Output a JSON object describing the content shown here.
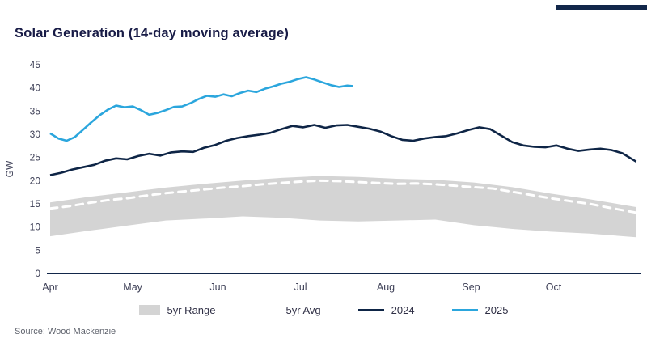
{
  "page": {
    "title": "Solar Generation (14-day moving average)",
    "source": "Source: Wood Mackenzie"
  },
  "legend": [
    {
      "label": "5yr Range",
      "type": "box",
      "color": "#d4d4d4"
    },
    {
      "label": "5yr Avg",
      "type": "dashed-line",
      "color": "#ffffff"
    },
    {
      "label": "2024",
      "type": "line",
      "color": "#0e2546"
    },
    {
      "label": "2025",
      "type": "line",
      "color": "#2ba6dd"
    }
  ],
  "chart_data": {
    "type": "line",
    "title": "Solar Generation (14-day moving average)",
    "xlabel": "",
    "ylabel": "GW",
    "ylim": [
      0,
      45
    ],
    "y_ticks": [
      0,
      5,
      10,
      15,
      20,
      25,
      30,
      35,
      40,
      45
    ],
    "grid": false,
    "legend_position": "bottom",
    "x_domain_days": [
      0,
      214
    ],
    "x_months": [
      {
        "label": "Apr",
        "day": 0
      },
      {
        "label": "May",
        "day": 30
      },
      {
        "label": "Jun",
        "day": 61
      },
      {
        "label": "Jul",
        "day": 91
      },
      {
        "label": "Aug",
        "day": 122
      },
      {
        "label": "Sep",
        "day": 153
      },
      {
        "label": "Oct",
        "day": 183
      }
    ],
    "colors": {
      "range": "#d4d4d4",
      "avg": "#ffffff",
      "y2024": "#0e2546",
      "y2025": "#2ba6dd",
      "axis": "#12274a"
    },
    "series": {
      "range": {
        "name": "5yr Range",
        "days": [
          0,
          14,
          28,
          42,
          56,
          70,
          84,
          98,
          112,
          126,
          140,
          154,
          168,
          182,
          196,
          213
        ],
        "upper": [
          15.3,
          16.5,
          17.5,
          18.5,
          19.3,
          20.0,
          20.6,
          21.0,
          20.8,
          20.4,
          20.2,
          19.6,
          18.6,
          17.2,
          16.0,
          14.3
        ],
        "lower": [
          8.0,
          9.2,
          10.3,
          11.4,
          11.8,
          12.3,
          12.0,
          11.4,
          11.2,
          11.4,
          11.6,
          10.4,
          9.6,
          9.0,
          8.6,
          7.8
        ]
      },
      "avg": {
        "name": "5yr Avg",
        "days": [
          0,
          7,
          14,
          21,
          28,
          35,
          42,
          49,
          56,
          63,
          70,
          77,
          84,
          91,
          98,
          105,
          112,
          119,
          126,
          133,
          140,
          147,
          154,
          161,
          168,
          175,
          182,
          189,
          196,
          203,
          213
        ],
        "values": [
          14.0,
          14.5,
          15.2,
          15.8,
          16.2,
          16.8,
          17.3,
          17.7,
          18.1,
          18.5,
          18.8,
          19.2,
          19.5,
          19.8,
          20.0,
          19.9,
          19.7,
          19.5,
          19.3,
          19.4,
          19.2,
          18.9,
          18.6,
          18.3,
          17.6,
          16.9,
          16.2,
          15.6,
          15.0,
          14.2,
          13.1
        ]
      },
      "y2024": {
        "name": "2024",
        "days": [
          0,
          4,
          8,
          12,
          16,
          20,
          24,
          28,
          32,
          36,
          40,
          44,
          48,
          52,
          56,
          60,
          64,
          68,
          72,
          76,
          80,
          84,
          88,
          92,
          96,
          100,
          104,
          108,
          112,
          116,
          120,
          124,
          128,
          132,
          136,
          140,
          144,
          148,
          152,
          156,
          160,
          164,
          168,
          172,
          176,
          180,
          184,
          188,
          192,
          196,
          200,
          204,
          208,
          213
        ],
        "values": [
          21.2,
          21.7,
          22.4,
          22.9,
          23.4,
          24.3,
          24.8,
          24.6,
          25.3,
          25.8,
          25.4,
          26.1,
          26.3,
          26.2,
          27.1,
          27.7,
          28.6,
          29.2,
          29.6,
          29.9,
          30.3,
          31.1,
          31.8,
          31.5,
          32.0,
          31.4,
          31.9,
          32.0,
          31.6,
          31.2,
          30.6,
          29.6,
          28.8,
          28.6,
          29.1,
          29.4,
          29.6,
          30.2,
          30.9,
          31.5,
          31.1,
          29.7,
          28.3,
          27.6,
          27.3,
          27.2,
          27.6,
          26.9,
          26.4,
          26.7,
          26.9,
          26.6,
          25.9,
          24.1
        ]
      },
      "y2025": {
        "name": "2025",
        "days": [
          0,
          3,
          6,
          9,
          12,
          15,
          18,
          21,
          24,
          27,
          30,
          33,
          36,
          39,
          42,
          45,
          48,
          51,
          54,
          57,
          60,
          63,
          66,
          69,
          72,
          75,
          78,
          81,
          84,
          87,
          90,
          93,
          96,
          99,
          102,
          105,
          108,
          110
        ],
        "values": [
          30.2,
          29.1,
          28.6,
          29.4,
          31.0,
          32.6,
          34.1,
          35.3,
          36.2,
          35.8,
          36.0,
          35.2,
          34.2,
          34.6,
          35.2,
          35.9,
          36.0,
          36.7,
          37.6,
          38.3,
          38.1,
          38.6,
          38.2,
          38.9,
          39.4,
          39.1,
          39.8,
          40.3,
          40.9,
          41.3,
          41.9,
          42.3,
          41.8,
          41.2,
          40.6,
          40.2,
          40.5,
          40.4
        ]
      }
    }
  }
}
